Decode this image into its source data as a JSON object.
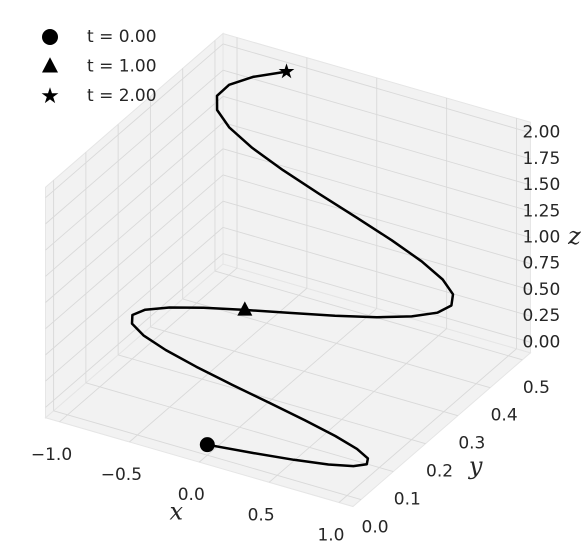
{
  "chart_data": {
    "type": "line3d",
    "color": "#000000",
    "x": [
      0,
      0.294,
      0.562,
      0.78,
      0.93,
      0.997,
      0.976,
      0.869,
      0.685,
      0.44,
      0.156,
      -0.141,
      -0.426,
      -0.673,
      -0.861,
      -0.972,
      -0.998,
      -0.935,
      -0.79,
      -0.575,
      -0.309,
      -0.016,
      0.279,
      0.549,
      0.77,
      0.924,
      0.996,
      0.979,
      0.876,
      0.696,
      0.454,
      0.172,
      -0.125,
      -0.412,
      -0.661,
      -0.853,
      -0.969,
      -0.999,
      -0.941,
      -0.8,
      -0.588
    ],
    "y": [
      0,
      0.0125,
      0.025,
      0.0375,
      0.05,
      0.0625,
      0.075,
      0.0875,
      0.1,
      0.1125,
      0.125,
      0.1375,
      0.15,
      0.1625,
      0.175,
      0.1875,
      0.2,
      0.2125,
      0.225,
      0.2375,
      0.25,
      0.2625,
      0.275,
      0.2875,
      0.3,
      0.3125,
      0.325,
      0.3375,
      0.35,
      0.3625,
      0.375,
      0.3875,
      0.4,
      0.4125,
      0.425,
      0.4375,
      0.45,
      0.4625,
      0.475,
      0.4875,
      0.5
    ],
    "z": [
      0,
      0.00125,
      0.005,
      0.01125,
      0.02,
      0.03125,
      0.045,
      0.06125,
      0.08,
      0.10125,
      0.125,
      0.15125,
      0.18,
      0.21125,
      0.245,
      0.28125,
      0.32,
      0.36125,
      0.405,
      0.45125,
      0.5,
      0.55125,
      0.605,
      0.66125,
      0.72,
      0.78125,
      0.845,
      0.91125,
      0.98,
      1.05125,
      1.125,
      1.20125,
      1.28,
      1.36125,
      1.445,
      1.53125,
      1.62,
      1.71125,
      1.805,
      1.90125,
      2
    ],
    "markers": [
      {
        "name": "t = 0.00",
        "shape": "circle",
        "x": 0,
        "y": 0,
        "z": 0
      },
      {
        "name": "t = 1.00",
        "shape": "triangle",
        "x": -0.309,
        "y": 0.25,
        "z": 0.5
      },
      {
        "name": "t = 2.00",
        "shape": "star",
        "x": -0.588,
        "y": 0.5,
        "z": 2
      }
    ],
    "legend": "upper left",
    "xlabel": "x",
    "ylabel": "y",
    "zlabel": "z",
    "xlim": [
      -1.1,
      1.1
    ],
    "ylim": [
      -0.025,
      0.525
    ],
    "zlim": [
      -0.1,
      2.1
    ],
    "xticks": [
      {
        "value": -1,
        "label": "−1.0"
      },
      {
        "value": -0.5,
        "label": "−0.5"
      },
      {
        "value": 0,
        "label": "0.0"
      },
      {
        "value": 0.5,
        "label": "0.5"
      },
      {
        "value": 1,
        "label": "1.0"
      }
    ],
    "yticks": [
      {
        "value": 0,
        "label": "0.0"
      },
      {
        "value": 0.1,
        "label": "0.1"
      },
      {
        "value": 0.2,
        "label": "0.2"
      },
      {
        "value": 0.3,
        "label": "0.3"
      },
      {
        "value": 0.4,
        "label": "0.4"
      },
      {
        "value": 0.5,
        "label": "0.5"
      }
    ],
    "zticks": [
      {
        "value": 0,
        "label": "0.00"
      },
      {
        "value": 0.25,
        "label": "0.25"
      },
      {
        "value": 0.5,
        "label": "0.50"
      },
      {
        "value": 0.75,
        "label": "0.75"
      },
      {
        "value": 1,
        "label": "1.00"
      },
      {
        "value": 1.25,
        "label": "1.25"
      },
      {
        "value": 1.5,
        "label": "1.50"
      },
      {
        "value": 1.75,
        "label": "1.75"
      },
      {
        "value": 2,
        "label": "2.00"
      }
    ],
    "grid": true
  }
}
